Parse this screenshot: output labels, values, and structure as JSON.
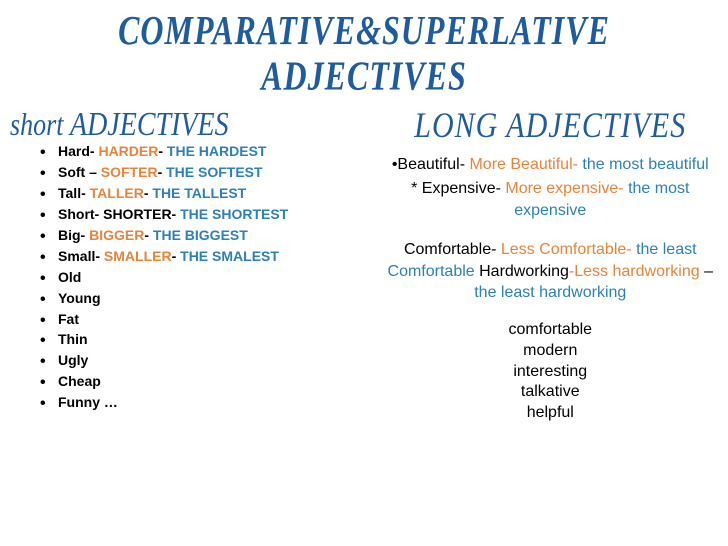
{
  "title_line1": "COMPARATIVE&SUPERLATIVE",
  "title_line2": "ADJECTIVES",
  "left_subtitle_small": "short ",
  "left_subtitle_caps": "ADJECTIVES",
  "right_subtitle": "LONG ADJECTIVES",
  "short_items": [
    {
      "base": "Hard- ",
      "comp": "HARDER",
      "dash": "- ",
      "sup": "THE HARDEST"
    },
    {
      "base": "Soft – ",
      "comp": "SOFTER",
      "dash": "- ",
      "sup": "THE SOFTEST"
    },
    {
      "base": "Tall- ",
      "comp": "TALLER",
      "dash": "- ",
      "sup": "THE TALLEST"
    },
    {
      "base": "Short- SHORTER- ",
      "comp": "",
      "dash": "",
      "sup": "THE SHORTEST"
    },
    {
      "base": "Big- ",
      "comp": "BIGGER",
      "dash": "- ",
      "sup": "THE BIGGEST"
    },
    {
      "base": "Small- ",
      "comp": "SMALLER",
      "dash": "- ",
      "sup": "THE SMALEST"
    },
    {
      "base": "Old",
      "comp": "",
      "dash": "",
      "sup": ""
    },
    {
      "base": "Young",
      "comp": "",
      "dash": "",
      "sup": ""
    },
    {
      "base": "Fat",
      "comp": "",
      "dash": "",
      "sup": ""
    },
    {
      "base": "Thin",
      "comp": "",
      "dash": "",
      "sup": ""
    },
    {
      "base": "Ugly",
      "comp": "",
      "dash": "",
      "sup": ""
    },
    {
      "base": "Cheap",
      "comp": "",
      "dash": "",
      "sup": ""
    },
    {
      "base": "Funny   …",
      "comp": "",
      "dash": "",
      "sup": ""
    }
  ],
  "long1_bullet": "•",
  "long1_base": "Beautiful- ",
  "long1_comp": "More Beautiful- ",
  "long1_sup": "the most beautiful",
  "long2_bullet": "* ",
  "long2_base": "Expensive- ",
  "long2_comp": "More expensive- ",
  "long2_sup": "the most expensive",
  "long3_base": "Comfortable- ",
  "long3_comp": "Less Comfortable- ",
  "long3_sup": "the least Comfortable ",
  "long3b_base": "Hardworking",
  "long3b_comp": "-Less hardworking ",
  "long3b_dash": "–",
  "long3b_sup": "the least hardworking",
  "simples": [
    "comfortable",
    "modern",
    "interesting",
    "talkative",
    "helpful"
  ],
  "colors": {
    "title": "#1f5c9e",
    "orange": "#e8833a",
    "blue": "#2c7fb8",
    "black": "#000000",
    "bg": "#ffffff"
  }
}
